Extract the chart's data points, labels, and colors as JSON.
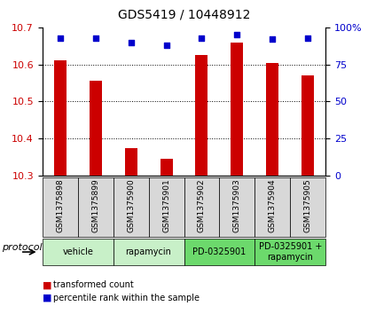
{
  "title": "GDS5419 / 10448912",
  "samples": [
    "GSM1375898",
    "GSM1375899",
    "GSM1375900",
    "GSM1375901",
    "GSM1375902",
    "GSM1375903",
    "GSM1375904",
    "GSM1375905"
  ],
  "red_values": [
    10.61,
    10.555,
    10.375,
    10.345,
    10.625,
    10.66,
    10.605,
    10.57
  ],
  "blue_values": [
    93,
    93,
    90,
    88,
    93,
    95,
    92,
    93
  ],
  "ylim_left": [
    10.3,
    10.7
  ],
  "ylim_right": [
    0,
    100
  ],
  "yticks_left": [
    10.3,
    10.4,
    10.5,
    10.6,
    10.7
  ],
  "yticks_right": [
    0,
    25,
    50,
    75,
    100
  ],
  "yticklabels_right": [
    "0",
    "25",
    "50",
    "75",
    "100%"
  ],
  "protocols": [
    {
      "label": "vehicle",
      "samples": [
        0,
        1
      ],
      "color": "#c8f0c8"
    },
    {
      "label": "rapamycin",
      "samples": [
        2,
        3
      ],
      "color": "#c8f0c8"
    },
    {
      "label": "PD-0325901",
      "samples": [
        4,
        5
      ],
      "color": "#6cd96c"
    },
    {
      "label": "PD-0325901 +\nrapamycin",
      "samples": [
        6,
        7
      ],
      "color": "#6cd96c"
    }
  ],
  "bar_color": "#cc0000",
  "dot_color": "#0000cc",
  "bar_width": 0.35,
  "grid_color": "#000000",
  "background_color": "#ffffff",
  "tick_label_color_left": "#cc0000",
  "tick_label_color_right": "#0000cc",
  "legend_red_label": "transformed count",
  "legend_blue_label": "percentile rank within the sample",
  "protocol_label": "protocol",
  "sample_box_color": "#d8d8d8"
}
